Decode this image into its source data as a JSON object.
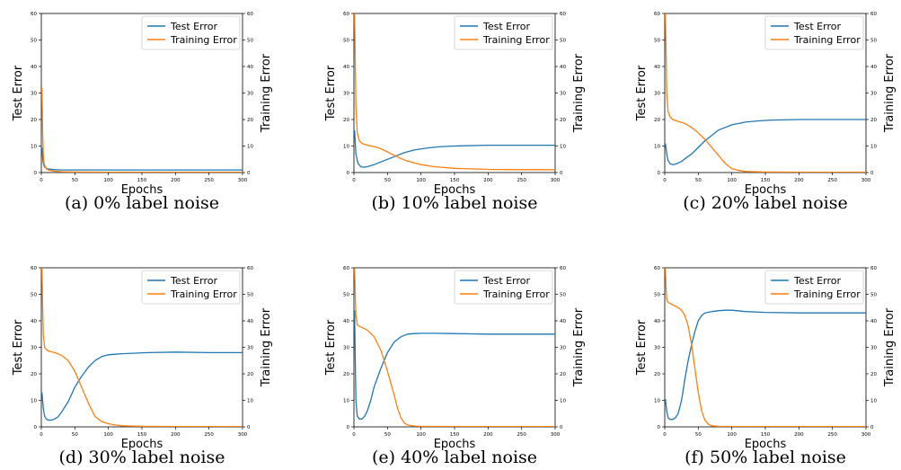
{
  "chart_data": [
    {
      "type": "line",
      "caption": "(a) 0% label noise",
      "xlabel": "Epochs",
      "ylabel": "Test Error",
      "y2label": "Training Error",
      "xlim": [
        0,
        300
      ],
      "ylim": [
        0,
        60
      ],
      "y2lim": [
        0,
        60
      ],
      "xticks": [
        0,
        50,
        100,
        150,
        200,
        250,
        300
      ],
      "yticks": [
        0,
        10,
        20,
        30,
        40,
        50,
        60
      ],
      "legend_position": "top-right",
      "series": [
        {
          "name": "Test Error",
          "axis": "left",
          "color": "#1f77b4",
          "x": [
            1,
            2,
            3,
            5,
            8,
            12,
            20,
            30,
            50,
            100,
            150,
            200,
            250,
            300
          ],
          "y": [
            9.5,
            5.5,
            3.5,
            2.0,
            1.5,
            1.3,
            1.1,
            1.0,
            1.0,
            1.0,
            1.0,
            1.0,
            1.0,
            1.0
          ]
        },
        {
          "name": "Training Error",
          "axis": "right",
          "color": "#ff7f0e",
          "x": [
            1,
            2,
            3,
            4,
            6,
            8,
            12,
            20,
            30,
            50,
            100,
            150,
            200,
            250,
            300
          ],
          "y": [
            32,
            15,
            7,
            3.5,
            2.0,
            1.3,
            0.8,
            0.5,
            0.3,
            0.2,
            0.1,
            0.1,
            0.1,
            0.1,
            0.1
          ]
        }
      ]
    },
    {
      "type": "line",
      "caption": "(b) 10% label noise",
      "xlabel": "Epochs",
      "ylabel": "Test Error",
      "y2label": "Training Error",
      "xlim": [
        0,
        300
      ],
      "ylim": [
        0,
        60
      ],
      "y2lim": [
        0,
        60
      ],
      "xticks": [
        0,
        50,
        100,
        150,
        200,
        250,
        300
      ],
      "yticks": [
        0,
        10,
        20,
        30,
        40,
        50,
        60
      ],
      "legend_position": "top-right",
      "series": [
        {
          "name": "Test Error",
          "axis": "left",
          "color": "#1f77b4",
          "x": [
            1,
            3,
            6,
            10,
            15,
            20,
            30,
            40,
            50,
            60,
            75,
            90,
            110,
            130,
            150,
            200,
            250,
            300
          ],
          "y": [
            16,
            7,
            3.5,
            2.2,
            2.0,
            2.2,
            3.0,
            4.0,
            5.0,
            6.0,
            7.5,
            8.5,
            9.3,
            9.8,
            10.0,
            10.3,
            10.3,
            10.3
          ]
        },
        {
          "name": "Training Error",
          "axis": "right",
          "color": "#ff7f0e",
          "x": [
            1,
            2,
            3,
            5,
            8,
            12,
            20,
            30,
            40,
            50,
            60,
            70,
            80,
            100,
            120,
            150,
            200,
            250,
            300
          ],
          "y": [
            60,
            42,
            25,
            15,
            12,
            11,
            10.3,
            9.8,
            9.0,
            7.8,
            6.5,
            5.3,
            4.3,
            3.0,
            2.2,
            1.6,
            1.2,
            1.1,
            1.1
          ]
        }
      ]
    },
    {
      "type": "line",
      "caption": "(c) 20% label noise",
      "xlabel": "Epochs",
      "ylabel": "Test Error",
      "y2label": "Training Error",
      "xlim": [
        0,
        300
      ],
      "ylim": [
        0,
        60
      ],
      "y2lim": [
        0,
        60
      ],
      "xticks": [
        0,
        50,
        100,
        150,
        200,
        250,
        300
      ],
      "yticks": [
        0,
        10,
        20,
        30,
        40,
        50,
        60
      ],
      "legend_position": "top-right",
      "series": [
        {
          "name": "Test Error",
          "axis": "left",
          "color": "#1f77b4",
          "x": [
            1,
            3,
            5,
            8,
            12,
            16,
            20,
            25,
            30,
            40,
            50,
            60,
            70,
            80,
            90,
            100,
            120,
            140,
            160,
            200,
            250,
            300
          ],
          "y": [
            11,
            7,
            4.5,
            3.3,
            3.0,
            3.2,
            3.6,
            4.2,
            5.2,
            7.0,
            9.5,
            12,
            14,
            16,
            17,
            18,
            19,
            19.5,
            19.8,
            20,
            20,
            20
          ]
        },
        {
          "name": "Training Error",
          "axis": "right",
          "color": "#ff7f0e",
          "x": [
            1,
            2,
            3,
            5,
            8,
            12,
            20,
            30,
            40,
            50,
            60,
            70,
            80,
            90,
            100,
            110,
            120,
            150,
            200,
            300
          ],
          "y": [
            60,
            45,
            30,
            23,
            21,
            20,
            19.3,
            18.5,
            17,
            15,
            12.5,
            9.5,
            6.5,
            3.5,
            1.5,
            0.8,
            0.4,
            0.2,
            0.1,
            0.1
          ]
        }
      ]
    },
    {
      "type": "line",
      "caption": "(d) 30% label noise",
      "xlabel": "Epochs",
      "ylabel": "Test Error",
      "y2label": "Training Error",
      "xlim": [
        0,
        300
      ],
      "ylim": [
        0,
        60
      ],
      "y2lim": [
        0,
        60
      ],
      "xticks": [
        0,
        50,
        100,
        150,
        200,
        250,
        300
      ],
      "yticks": [
        0,
        10,
        20,
        30,
        40,
        50,
        60
      ],
      "legend_position": "top-right",
      "series": [
        {
          "name": "Test Error",
          "axis": "left",
          "color": "#1f77b4",
          "x": [
            1,
            3,
            5,
            8,
            12,
            16,
            20,
            25,
            30,
            40,
            50,
            60,
            70,
            80,
            90,
            100,
            120,
            140,
            160,
            200,
            250,
            300
          ],
          "y": [
            13,
            7,
            4,
            2.8,
            2.5,
            2.6,
            3.0,
            3.8,
            5.5,
            9.5,
            15,
            19,
            22.5,
            25,
            26.5,
            27.2,
            27.6,
            27.8,
            28,
            28.2,
            28,
            28
          ]
        },
        {
          "name": "Training Error",
          "axis": "right",
          "color": "#ff7f0e",
          "x": [
            1,
            2,
            3,
            5,
            8,
            12,
            20,
            30,
            40,
            50,
            60,
            70,
            80,
            90,
            100,
            110,
            120,
            150,
            200,
            300
          ],
          "y": [
            60,
            45,
            35,
            30,
            29,
            28.5,
            28,
            27,
            25,
            21,
            15,
            9,
            4,
            2,
            1.2,
            0.7,
            0.4,
            0.2,
            0.1,
            0.1
          ]
        }
      ]
    },
    {
      "type": "line",
      "caption": "(e) 40% label noise",
      "xlabel": "Epochs",
      "ylabel": "Test Error",
      "y2label": "Training Error",
      "xlim": [
        0,
        300
      ],
      "ylim": [
        0,
        60
      ],
      "y2lim": [
        0,
        60
      ],
      "xticks": [
        0,
        50,
        100,
        150,
        200,
        250,
        300
      ],
      "yticks": [
        0,
        10,
        20,
        30,
        40,
        50,
        60
      ],
      "legend_position": "top-right",
      "series": [
        {
          "name": "Test Error",
          "axis": "left",
          "color": "#1f77b4",
          "x": [
            1,
            2,
            3,
            5,
            8,
            12,
            16,
            20,
            25,
            30,
            40,
            50,
            60,
            70,
            80,
            90,
            100,
            120,
            150,
            200,
            250,
            300
          ],
          "y": [
            44,
            25,
            10,
            4,
            3.0,
            3.0,
            4.0,
            6.0,
            10,
            15,
            22,
            28,
            32,
            34,
            35,
            35.2,
            35.3,
            35.3,
            35.2,
            35,
            35,
            35
          ]
        },
        {
          "name": "Training Error",
          "axis": "right",
          "color": "#ff7f0e",
          "x": [
            1,
            2,
            3,
            5,
            8,
            12,
            20,
            30,
            40,
            50,
            60,
            65,
            70,
            75,
            80,
            90,
            100,
            150,
            200,
            300
          ],
          "y": [
            60,
            50,
            42,
            38.5,
            38,
            37.5,
            36.5,
            34,
            29,
            21,
            12,
            7,
            3.5,
            1.5,
            0.7,
            0.3,
            0.2,
            0.1,
            0.1,
            0.1
          ]
        }
      ]
    },
    {
      "type": "line",
      "caption": "(f) 50% label noise",
      "xlabel": "Epochs",
      "ylabel": "Test Error",
      "y2label": "Training Error",
      "xlim": [
        0,
        300
      ],
      "ylim": [
        0,
        60
      ],
      "y2lim": [
        0,
        60
      ],
      "xticks": [
        0,
        50,
        100,
        150,
        200,
        250,
        300
      ],
      "yticks": [
        0,
        10,
        20,
        30,
        40,
        50,
        60
      ],
      "legend_position": "top-right",
      "series": [
        {
          "name": "Test Error",
          "axis": "left",
          "color": "#1f77b4",
          "x": [
            1,
            3,
            5,
            8,
            12,
            16,
            20,
            25,
            30,
            35,
            40,
            45,
            50,
            55,
            60,
            70,
            80,
            90,
            100,
            120,
            150,
            200,
            250,
            300
          ],
          "y": [
            10.5,
            6,
            3.5,
            2.8,
            2.8,
            3.5,
            5,
            10,
            18,
            25,
            31,
            36,
            40,
            42,
            43,
            43.5,
            43.8,
            44,
            44,
            43.5,
            43.2,
            43,
            43,
            43
          ]
        },
        {
          "name": "Training Error",
          "axis": "right",
          "color": "#ff7f0e",
          "x": [
            1,
            2,
            3,
            5,
            8,
            12,
            20,
            25,
            30,
            35,
            40,
            45,
            50,
            55,
            60,
            65,
            70,
            80,
            100,
            150,
            200,
            300
          ],
          "y": [
            60,
            52,
            48,
            47,
            46.5,
            46,
            45,
            44,
            42,
            38,
            31,
            22,
            13,
            6,
            2.5,
            1,
            0.4,
            0.2,
            0.1,
            0.1,
            0.1,
            0.1
          ]
        }
      ]
    }
  ]
}
